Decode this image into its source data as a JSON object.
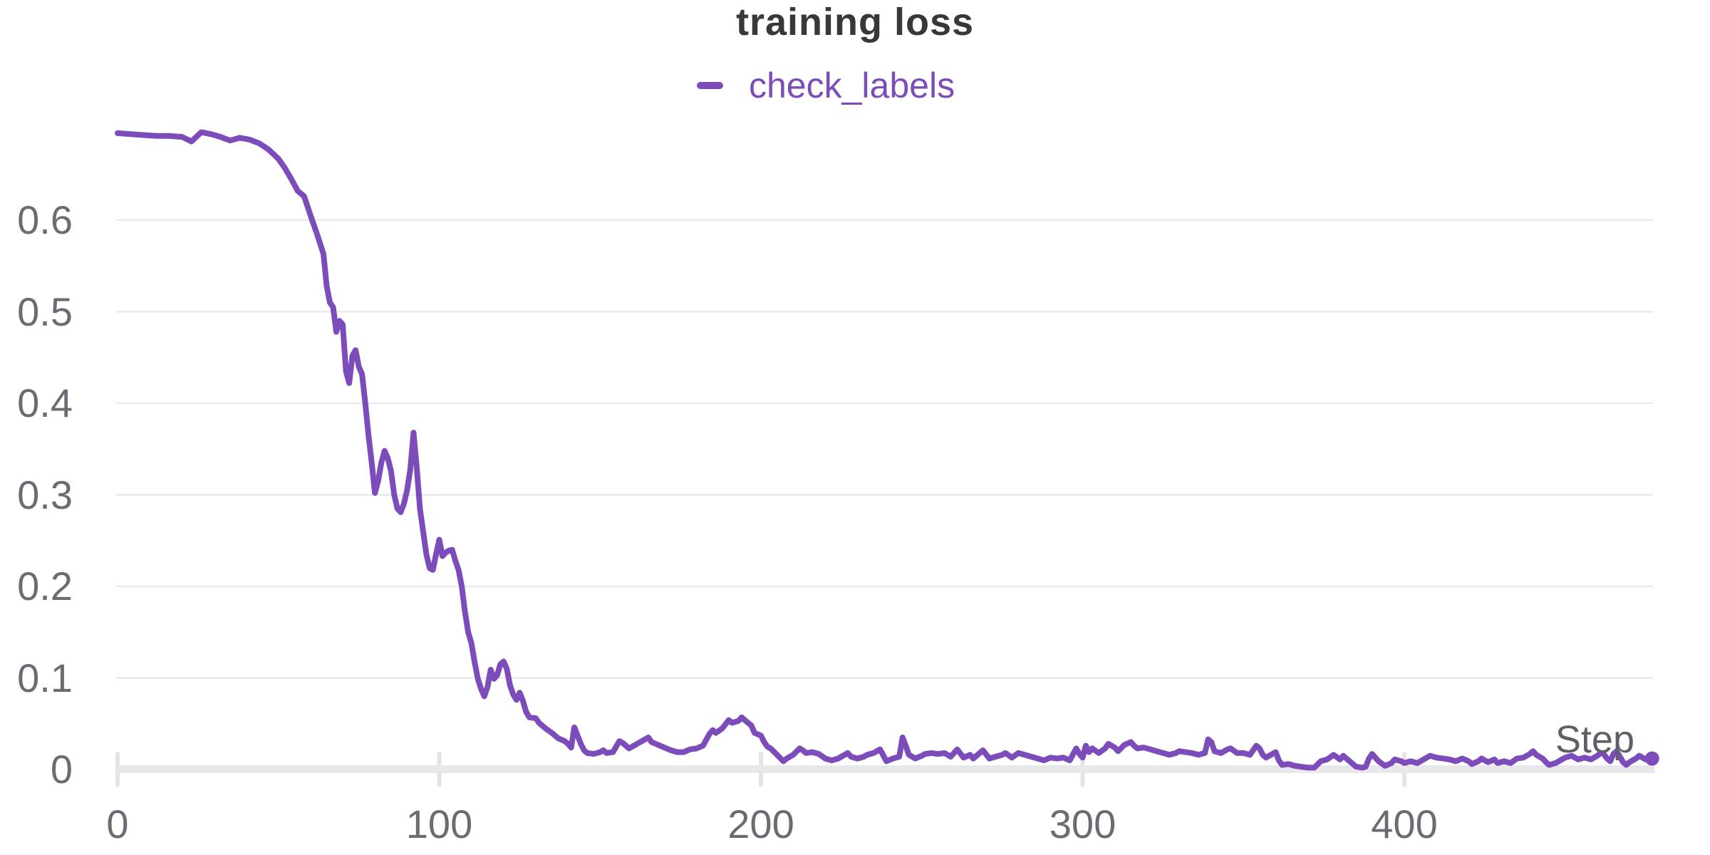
{
  "page": {
    "title": "training loss"
  },
  "legend": {
    "series_label": "check_labels",
    "marker": "line-dash"
  },
  "axis": {
    "x_label": "Step"
  },
  "colors": {
    "line": "#7C4DBA",
    "legend_text": "#7C4DBA",
    "title_text": "#383838",
    "tick_text": "#6B6B74",
    "step_text": "#5F5F67",
    "grid": "#EAEAEC",
    "tick_mark": "#E4E4E7",
    "baseline": "#E8E8EA",
    "background": "#FFFFFF"
  },
  "chart_data": {
    "type": "line",
    "title": "training loss",
    "xlabel": "Step",
    "ylabel": "",
    "legend": [
      "check_labels"
    ],
    "legend_position": "top-center",
    "grid": "horizontal-only",
    "x_ticks": [
      0,
      100,
      200,
      300,
      400
    ],
    "y_ticks": [
      0,
      0.1,
      0.2,
      0.3,
      0.4,
      0.5,
      0.6
    ],
    "xlim": [
      0,
      477
    ],
    "ylim": [
      0,
      0.72
    ],
    "end_marker": true,
    "series": [
      {
        "name": "check_labels",
        "color": "#7C4DBA",
        "points": [
          [
            0,
            0.695
          ],
          [
            4,
            0.694
          ],
          [
            8,
            0.693
          ],
          [
            12,
            0.692
          ],
          [
            16,
            0.692
          ],
          [
            20,
            0.691
          ],
          [
            23,
            0.686
          ],
          [
            26,
            0.696
          ],
          [
            29,
            0.694
          ],
          [
            32,
            0.691
          ],
          [
            35,
            0.687
          ],
          [
            38,
            0.69
          ],
          [
            41,
            0.688
          ],
          [
            44,
            0.684
          ],
          [
            47,
            0.677
          ],
          [
            50,
            0.667
          ],
          [
            52,
            0.657
          ],
          [
            54,
            0.645
          ],
          [
            56,
            0.632
          ],
          [
            58,
            0.626
          ],
          [
            60,
            0.605
          ],
          [
            62,
            0.585
          ],
          [
            64,
            0.563
          ],
          [
            65,
            0.528
          ],
          [
            66,
            0.51
          ],
          [
            67,
            0.505
          ],
          [
            68,
            0.478
          ],
          [
            69,
            0.49
          ],
          [
            70,
            0.486
          ],
          [
            71,
            0.435
          ],
          [
            72,
            0.422
          ],
          [
            73,
            0.452
          ],
          [
            74,
            0.458
          ],
          [
            75,
            0.44
          ],
          [
            76,
            0.432
          ],
          [
            77,
            0.4
          ],
          [
            78,
            0.365
          ],
          [
            79,
            0.335
          ],
          [
            80,
            0.302
          ],
          [
            81,
            0.315
          ],
          [
            82,
            0.335
          ],
          [
            83,
            0.348
          ],
          [
            84,
            0.34
          ],
          [
            85,
            0.326
          ],
          [
            86,
            0.3
          ],
          [
            87,
            0.285
          ],
          [
            88,
            0.281
          ],
          [
            89,
            0.29
          ],
          [
            90,
            0.305
          ],
          [
            91,
            0.328
          ],
          [
            92,
            0.368
          ],
          [
            93,
            0.33
          ],
          [
            94,
            0.285
          ],
          [
            95,
            0.26
          ],
          [
            96,
            0.235
          ],
          [
            97,
            0.22
          ],
          [
            98,
            0.218
          ],
          [
            99,
            0.235
          ],
          [
            100,
            0.251
          ],
          [
            101,
            0.233
          ],
          [
            102,
            0.237
          ],
          [
            103,
            0.239
          ],
          [
            104,
            0.24
          ],
          [
            105,
            0.228
          ],
          [
            106,
            0.218
          ],
          [
            107,
            0.2
          ],
          [
            108,
            0.172
          ],
          [
            109,
            0.15
          ],
          [
            110,
            0.138
          ],
          [
            111,
            0.117
          ],
          [
            112,
            0.099
          ],
          [
            113,
            0.088
          ],
          [
            114,
            0.08
          ],
          [
            115,
            0.09
          ],
          [
            116,
            0.109
          ],
          [
            117,
            0.099
          ],
          [
            118,
            0.103
          ],
          [
            119,
            0.115
          ],
          [
            120,
            0.118
          ],
          [
            121,
            0.11
          ],
          [
            122,
            0.092
          ],
          [
            123,
            0.082
          ],
          [
            124,
            0.076
          ],
          [
            125,
            0.084
          ],
          [
            126,
            0.075
          ],
          [
            127,
            0.063
          ],
          [
            128,
            0.057
          ],
          [
            130,
            0.056
          ],
          [
            131,
            0.051
          ],
          [
            133,
            0.045
          ],
          [
            135,
            0.04
          ],
          [
            137,
            0.034
          ],
          [
            139,
            0.031
          ],
          [
            140,
            0.028
          ],
          [
            141,
            0.024
          ],
          [
            142,
            0.046
          ],
          [
            144,
            0.028
          ],
          [
            145,
            0.021
          ],
          [
            146,
            0.018
          ],
          [
            148,
            0.017
          ],
          [
            150,
            0.019
          ],
          [
            151,
            0.021
          ],
          [
            152,
            0.018
          ],
          [
            154,
            0.019
          ],
          [
            156,
            0.031
          ],
          [
            157,
            0.029
          ],
          [
            159,
            0.023
          ],
          [
            160,
            0.025
          ],
          [
            162,
            0.029
          ],
          [
            165,
            0.035
          ],
          [
            166,
            0.03
          ],
          [
            168,
            0.027
          ],
          [
            170,
            0.024
          ],
          [
            172,
            0.021
          ],
          [
            174,
            0.019
          ],
          [
            176,
            0.019
          ],
          [
            178,
            0.022
          ],
          [
            180,
            0.023
          ],
          [
            182,
            0.026
          ],
          [
            184,
            0.039
          ],
          [
            185,
            0.043
          ],
          [
            186,
            0.04
          ],
          [
            188,
            0.045
          ],
          [
            190,
            0.054
          ],
          [
            191,
            0.051
          ],
          [
            193,
            0.053
          ],
          [
            194,
            0.057
          ],
          [
            196,
            0.051
          ],
          [
            197,
            0.048
          ],
          [
            198,
            0.04
          ],
          [
            200,
            0.037
          ],
          [
            201,
            0.03
          ],
          [
            202,
            0.025
          ],
          [
            203,
            0.023
          ],
          [
            205,
            0.016
          ],
          [
            207,
            0.009
          ],
          [
            208,
            0.012
          ],
          [
            210,
            0.016
          ],
          [
            212,
            0.023
          ],
          [
            213,
            0.021
          ],
          [
            214,
            0.018
          ],
          [
            216,
            0.019
          ],
          [
            218,
            0.017
          ],
          [
            220,
            0.012
          ],
          [
            222,
            0.01
          ],
          [
            224,
            0.012
          ],
          [
            226,
            0.016
          ],
          [
            227,
            0.018
          ],
          [
            228,
            0.014
          ],
          [
            230,
            0.012
          ],
          [
            232,
            0.014
          ],
          [
            233,
            0.016
          ],
          [
            235,
            0.018
          ],
          [
            237,
            0.022
          ],
          [
            239,
            0.009
          ],
          [
            241,
            0.012
          ],
          [
            243,
            0.014
          ],
          [
            244,
            0.035
          ],
          [
            245,
            0.026
          ],
          [
            246,
            0.016
          ],
          [
            248,
            0.012
          ],
          [
            250,
            0.015
          ],
          [
            251,
            0.017
          ],
          [
            253,
            0.018
          ],
          [
            255,
            0.017
          ],
          [
            257,
            0.018
          ],
          [
            259,
            0.014
          ],
          [
            261,
            0.022
          ],
          [
            263,
            0.013
          ],
          [
            265,
            0.016
          ],
          [
            266,
            0.012
          ],
          [
            268,
            0.018
          ],
          [
            269,
            0.021
          ],
          [
            271,
            0.012
          ],
          [
            273,
            0.014
          ],
          [
            275,
            0.016
          ],
          [
            276,
            0.018
          ],
          [
            278,
            0.013
          ],
          [
            280,
            0.018
          ],
          [
            282,
            0.016
          ],
          [
            284,
            0.014
          ],
          [
            286,
            0.012
          ],
          [
            288,
            0.01
          ],
          [
            290,
            0.013
          ],
          [
            292,
            0.012
          ],
          [
            294,
            0.013
          ],
          [
            296,
            0.01
          ],
          [
            298,
            0.023
          ],
          [
            299,
            0.017
          ],
          [
            300,
            0.013
          ],
          [
            301,
            0.026
          ],
          [
            302,
            0.019
          ],
          [
            303,
            0.023
          ],
          [
            305,
            0.018
          ],
          [
            307,
            0.023
          ],
          [
            308,
            0.028
          ],
          [
            310,
            0.024
          ],
          [
            311,
            0.02
          ],
          [
            313,
            0.027
          ],
          [
            315,
            0.03
          ],
          [
            316,
            0.026
          ],
          [
            317,
            0.023
          ],
          [
            319,
            0.024
          ],
          [
            321,
            0.022
          ],
          [
            323,
            0.02
          ],
          [
            325,
            0.018
          ],
          [
            327,
            0.016
          ],
          [
            329,
            0.018
          ],
          [
            330,
            0.02
          ],
          [
            332,
            0.019
          ],
          [
            334,
            0.018
          ],
          [
            336,
            0.016
          ],
          [
            338,
            0.018
          ],
          [
            339,
            0.033
          ],
          [
            340,
            0.03
          ],
          [
            341,
            0.02
          ],
          [
            343,
            0.018
          ],
          [
            345,
            0.022
          ],
          [
            346,
            0.023
          ],
          [
            348,
            0.018
          ],
          [
            350,
            0.018
          ],
          [
            352,
            0.016
          ],
          [
            354,
            0.026
          ],
          [
            355,
            0.023
          ],
          [
            356,
            0.016
          ],
          [
            357,
            0.013
          ],
          [
            358,
            0.015
          ],
          [
            360,
            0.019
          ],
          [
            361,
            0.01
          ],
          [
            362,
            0.005
          ],
          [
            364,
            0.006
          ],
          [
            366,
            0.004
          ],
          [
            368,
            0.003
          ],
          [
            370,
            0.002
          ],
          [
            372,
            0.002
          ],
          [
            374,
            0.009
          ],
          [
            376,
            0.011
          ],
          [
            378,
            0.016
          ],
          [
            380,
            0.011
          ],
          [
            381,
            0.015
          ],
          [
            383,
            0.009
          ],
          [
            385,
            0.003
          ],
          [
            387,
            0.002
          ],
          [
            388,
            0.003
          ],
          [
            389,
            0.012
          ],
          [
            390,
            0.017
          ],
          [
            392,
            0.009
          ],
          [
            394,
            0.004
          ],
          [
            396,
            0.007
          ],
          [
            397,
            0.011
          ],
          [
            399,
            0.009
          ],
          [
            400,
            0.007
          ],
          [
            402,
            0.009
          ],
          [
            404,
            0.007
          ],
          [
            406,
            0.011
          ],
          [
            408,
            0.015
          ],
          [
            410,
            0.013
          ],
          [
            412,
            0.012
          ],
          [
            414,
            0.011
          ],
          [
            416,
            0.009
          ],
          [
            418,
            0.012
          ],
          [
            420,
            0.009
          ],
          [
            421,
            0.006
          ],
          [
            423,
            0.009
          ],
          [
            424,
            0.012
          ],
          [
            426,
            0.008
          ],
          [
            428,
            0.011
          ],
          [
            429,
            0.007
          ],
          [
            431,
            0.009
          ],
          [
            433,
            0.007
          ],
          [
            435,
            0.012
          ],
          [
            437,
            0.013
          ],
          [
            439,
            0.017
          ],
          [
            440,
            0.02
          ],
          [
            441,
            0.016
          ],
          [
            443,
            0.012
          ],
          [
            444,
            0.008
          ],
          [
            445,
            0.005
          ],
          [
            447,
            0.007
          ],
          [
            449,
            0.011
          ],
          [
            450,
            0.013
          ],
          [
            452,
            0.015
          ],
          [
            454,
            0.011
          ],
          [
            456,
            0.013
          ],
          [
            458,
            0.011
          ],
          [
            460,
            0.015
          ],
          [
            461,
            0.018
          ],
          [
            462,
            0.017
          ],
          [
            463,
            0.012
          ],
          [
            464,
            0.009
          ],
          [
            465,
            0.017
          ],
          [
            466,
            0.02
          ],
          [
            468,
            0.008
          ],
          [
            469,
            0.005
          ],
          [
            470,
            0.008
          ],
          [
            472,
            0.012
          ],
          [
            473,
            0.015
          ],
          [
            475,
            0.011
          ],
          [
            477,
            0.012
          ]
        ]
      }
    ]
  }
}
